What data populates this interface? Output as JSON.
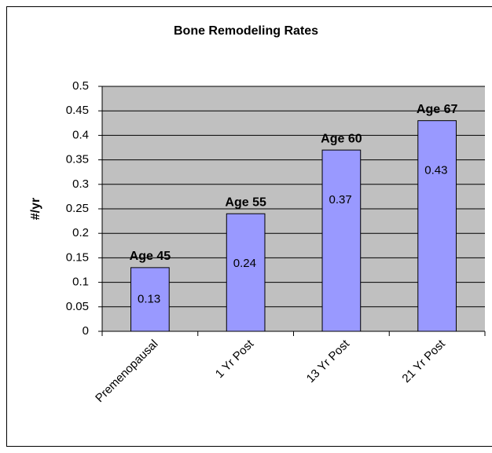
{
  "chart_data": {
    "type": "bar",
    "title": "Bone Remodeling Rates",
    "y_label": "#/yr",
    "categories": [
      "Premenopausal",
      "1 Yr Post",
      "13 Yr Post",
      "21 Yr Post"
    ],
    "values": [
      0.13,
      0.24,
      0.37,
      0.43
    ],
    "annotations": [
      "Age 45",
      "Age 55",
      "Age 60",
      "Age 67"
    ],
    "color": "#9999ff",
    "plot_background": "#c0c0c0",
    "ylim": [
      0,
      0.5
    ],
    "yticks": [
      0,
      0.05,
      0.1,
      0.15,
      0.2,
      0.25,
      0.3,
      0.35,
      0.4,
      0.45,
      0.5
    ],
    "grid": true
  }
}
